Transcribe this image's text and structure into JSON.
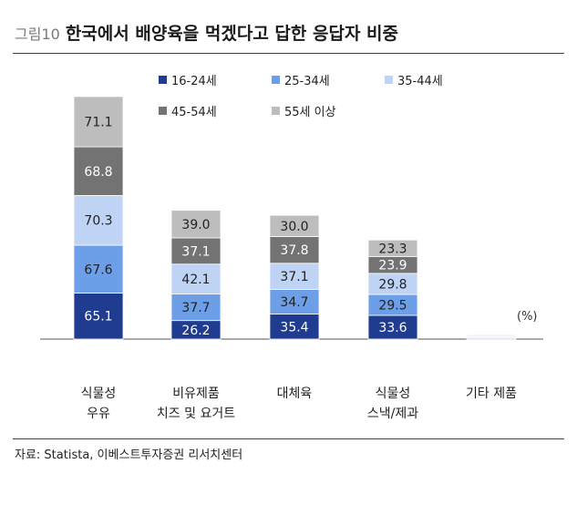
{
  "header": {
    "figure_label": "그림10",
    "title": "한국에서 배양육을 먹겠다고 답한 응답자 비중"
  },
  "unit": "(%)",
  "source": "자료: Statista, 이베스트투자증권 리서치센터",
  "chart_data": {
    "type": "bar",
    "stacked": true,
    "categories": [
      [
        "식물성",
        "우유"
      ],
      [
        "비유제품",
        "치즈 및 요거트"
      ],
      [
        "대체육"
      ],
      [
        "식물성",
        "스낵/제과"
      ],
      [
        "기타 제품"
      ]
    ],
    "series": [
      {
        "name": "16-24세",
        "color": "#1f3c91",
        "values": [
          65.1,
          26.2,
          35.4,
          33.6,
          1.2
        ],
        "labels": [
          "65.1",
          "26.2",
          "35.4",
          "33.6",
          ""
        ]
      },
      {
        "name": "25-34세",
        "color": "#6d9ee8",
        "values": [
          67.6,
          37.7,
          34.7,
          29.5,
          1.2
        ],
        "labels": [
          "67.6",
          "37.7",
          "34.7",
          "29.5",
          ""
        ]
      },
      {
        "name": "35-44세",
        "color": "#bfd3f5",
        "values": [
          70.3,
          42.1,
          37.1,
          29.8,
          1.2
        ],
        "labels": [
          "70.3",
          "42.1",
          "37.1",
          "29.8",
          ""
        ]
      },
      {
        "name": "45-54세",
        "color": "#737373",
        "values": [
          68.8,
          37.1,
          37.8,
          23.9,
          1.2
        ],
        "labels": [
          "68.8",
          "37.1",
          "37.8",
          "23.9",
          ""
        ]
      },
      {
        "name": "55세 이상",
        "color": "#bdbdbd",
        "values": [
          71.1,
          39.0,
          30.0,
          23.3,
          1.2
        ],
        "labels": [
          "71.1",
          "39.0",
          "30.0",
          "23.3",
          ""
        ]
      }
    ],
    "label_colors": [
      "#ffffff",
      "#222222",
      "#222222",
      "#ffffff",
      "#222222"
    ],
    "legend_position": "top",
    "grid": false
  }
}
